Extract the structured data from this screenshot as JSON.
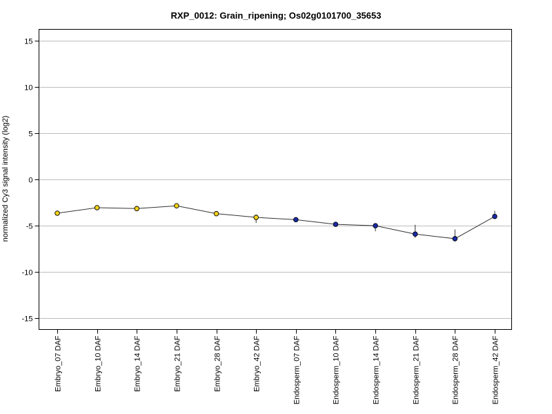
{
  "chart_data": {
    "type": "line",
    "title": "RXP_0012: Grain_ripening; Os02g0101700_35653",
    "xlabel": "",
    "ylabel": "normalized Cy3 signal intensity (log2)",
    "ylim": [
      -16.2,
      16.2
    ],
    "yticks": [
      -15,
      -10,
      -5,
      0,
      5,
      10,
      15
    ],
    "grid": true,
    "categories": [
      "Embryo_07 DAF",
      "Embryo_10 DAF",
      "Embryo_14 DAF",
      "Embryo_21 DAF",
      "Embryo_28 DAF",
      "Embryo_42 DAF",
      "Endosperm_07 DAF",
      "Endosperm_10 DAF",
      "Endosperm_14 DAF",
      "Endosperm_21 DAF",
      "Endosperm_28 DAF",
      "Endosperm_42 DAF"
    ],
    "series": [
      {
        "values": [
          -3.65,
          -3.05,
          -3.15,
          -2.85,
          -3.7,
          -4.1,
          -4.35,
          -4.85,
          -5.0,
          -5.9,
          -6.4,
          -4.0
        ],
        "err_low": [
          -3.8,
          -3.2,
          -3.3,
          -3.0,
          -3.9,
          -4.7,
          -4.6,
          -4.95,
          -5.6,
          -6.3,
          -6.7,
          -4.25
        ],
        "err_high": [
          -3.5,
          -2.9,
          -3.0,
          -2.7,
          -3.5,
          -3.8,
          -4.1,
          -4.75,
          -4.85,
          -4.9,
          -5.4,
          -3.4
        ],
        "point_colors": [
          "#f2d21b",
          "#f2d21b",
          "#f2d21b",
          "#f2d21b",
          "#f2d21b",
          "#f2d21b",
          "#1a2aa8",
          "#1a2aa8",
          "#1a2aa8",
          "#1a2aa8",
          "#1a2aa8",
          "#1a2aa8"
        ]
      }
    ],
    "colors": {
      "line": "#333333",
      "grid": "#bdbdbd",
      "axis": "#000000",
      "embryo": "#f2d21b",
      "endosperm": "#1a2aa8"
    }
  }
}
